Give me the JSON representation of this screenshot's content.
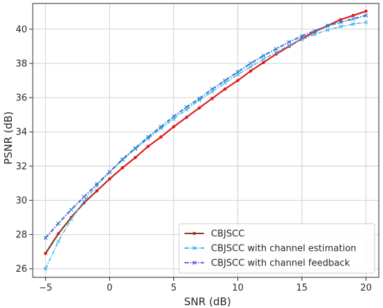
{
  "chart_data": {
    "type": "line",
    "title": "",
    "xlabel": "SNR (dB)",
    "ylabel": "PSNR (dB)",
    "xlim": [
      -6,
      21
    ],
    "ylim": [
      25.5,
      41.5
    ],
    "xticks": [
      -5,
      0,
      5,
      10,
      15,
      20
    ],
    "yticks": [
      26,
      28,
      30,
      32,
      34,
      36,
      38,
      40
    ],
    "grid": true,
    "legend_position": "bottom-right",
    "series": [
      {
        "name": "CBJSCC",
        "color": "#e4191c",
        "gradient_start_color": "#7b3b1a",
        "marker": "circle",
        "x": [
          -5,
          -4,
          -3,
          -2,
          -1,
          0,
          1,
          2,
          3,
          4,
          5,
          6,
          7,
          8,
          9,
          10,
          11,
          12,
          13,
          14,
          15,
          16,
          17,
          18,
          19,
          20
        ],
        "y": [
          26.9,
          28.05,
          29.0,
          29.85,
          30.55,
          31.25,
          31.9,
          32.5,
          33.15,
          33.7,
          34.3,
          34.85,
          35.4,
          35.95,
          36.5,
          37.0,
          37.55,
          38.05,
          38.55,
          39.0,
          39.45,
          39.85,
          40.2,
          40.55,
          40.8,
          41.05
        ]
      },
      {
        "name": "CBJSCC with channel estimation",
        "color": "#3fb6ea",
        "marker": "x",
        "x": [
          -5,
          -4,
          -3,
          -2,
          -1,
          0,
          1,
          2,
          3,
          4,
          5,
          6,
          7,
          8,
          9,
          10,
          11,
          12,
          13,
          14,
          15,
          16,
          17,
          18,
          19,
          20
        ],
        "y": [
          26.0,
          27.6,
          28.9,
          29.95,
          30.85,
          31.65,
          32.35,
          33.0,
          33.6,
          34.2,
          34.75,
          35.3,
          35.85,
          36.35,
          36.85,
          37.35,
          37.8,
          38.25,
          38.65,
          39.05,
          39.4,
          39.7,
          39.95,
          40.15,
          40.3,
          40.4
        ]
      },
      {
        "name": "CBJSCC with channel feedback",
        "color": "#2e7fd0",
        "gradient_start_color": "#5b5ee0",
        "marker": "x",
        "x": [
          -5,
          -4,
          -3,
          -2,
          -1,
          0,
          1,
          2,
          3,
          4,
          5,
          6,
          7,
          8,
          9,
          10,
          11,
          12,
          13,
          14,
          15,
          16,
          17,
          18,
          19,
          20
        ],
        "y": [
          27.8,
          28.65,
          29.45,
          30.2,
          30.95,
          31.65,
          32.4,
          33.05,
          33.7,
          34.3,
          34.9,
          35.45,
          35.95,
          36.5,
          37.0,
          37.5,
          38.0,
          38.45,
          38.85,
          39.25,
          39.6,
          39.9,
          40.2,
          40.4,
          40.6,
          40.8
        ]
      }
    ]
  }
}
